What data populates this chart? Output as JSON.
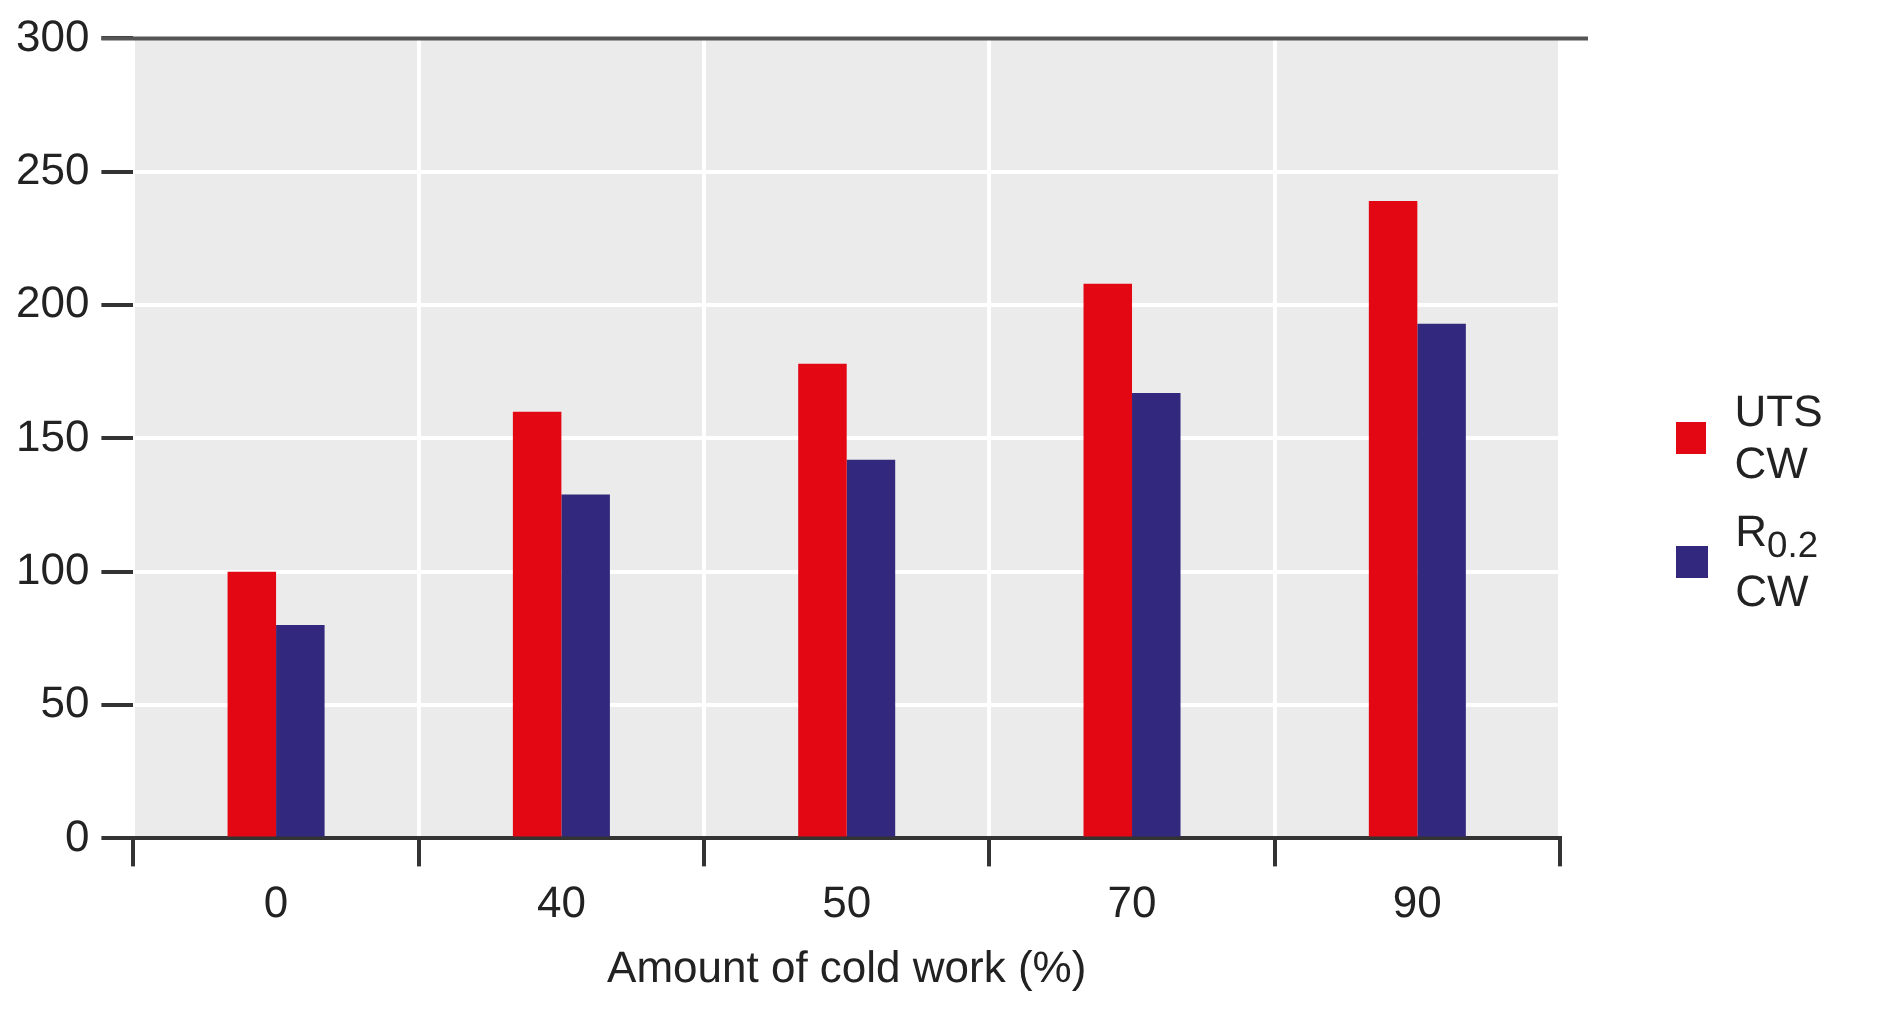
{
  "chart_data": {
    "type": "bar",
    "xlabel": "Amount of cold work (%)",
    "categories": [
      "0",
      "40",
      "50",
      "70",
      "90"
    ],
    "series": [
      {
        "name": "UTS CW",
        "color": "#e30613",
        "values": [
          100,
          160,
          178,
          208,
          239
        ]
      },
      {
        "name": "R$_{0.2}$ CW",
        "color": "#32287d",
        "values": [
          80,
          129,
          142,
          167,
          193
        ]
      }
    ],
    "ylim": [
      0,
      300
    ],
    "yticks": [
      0,
      50,
      100,
      150,
      200,
      250,
      300
    ],
    "grid": true,
    "legend": "right"
  }
}
